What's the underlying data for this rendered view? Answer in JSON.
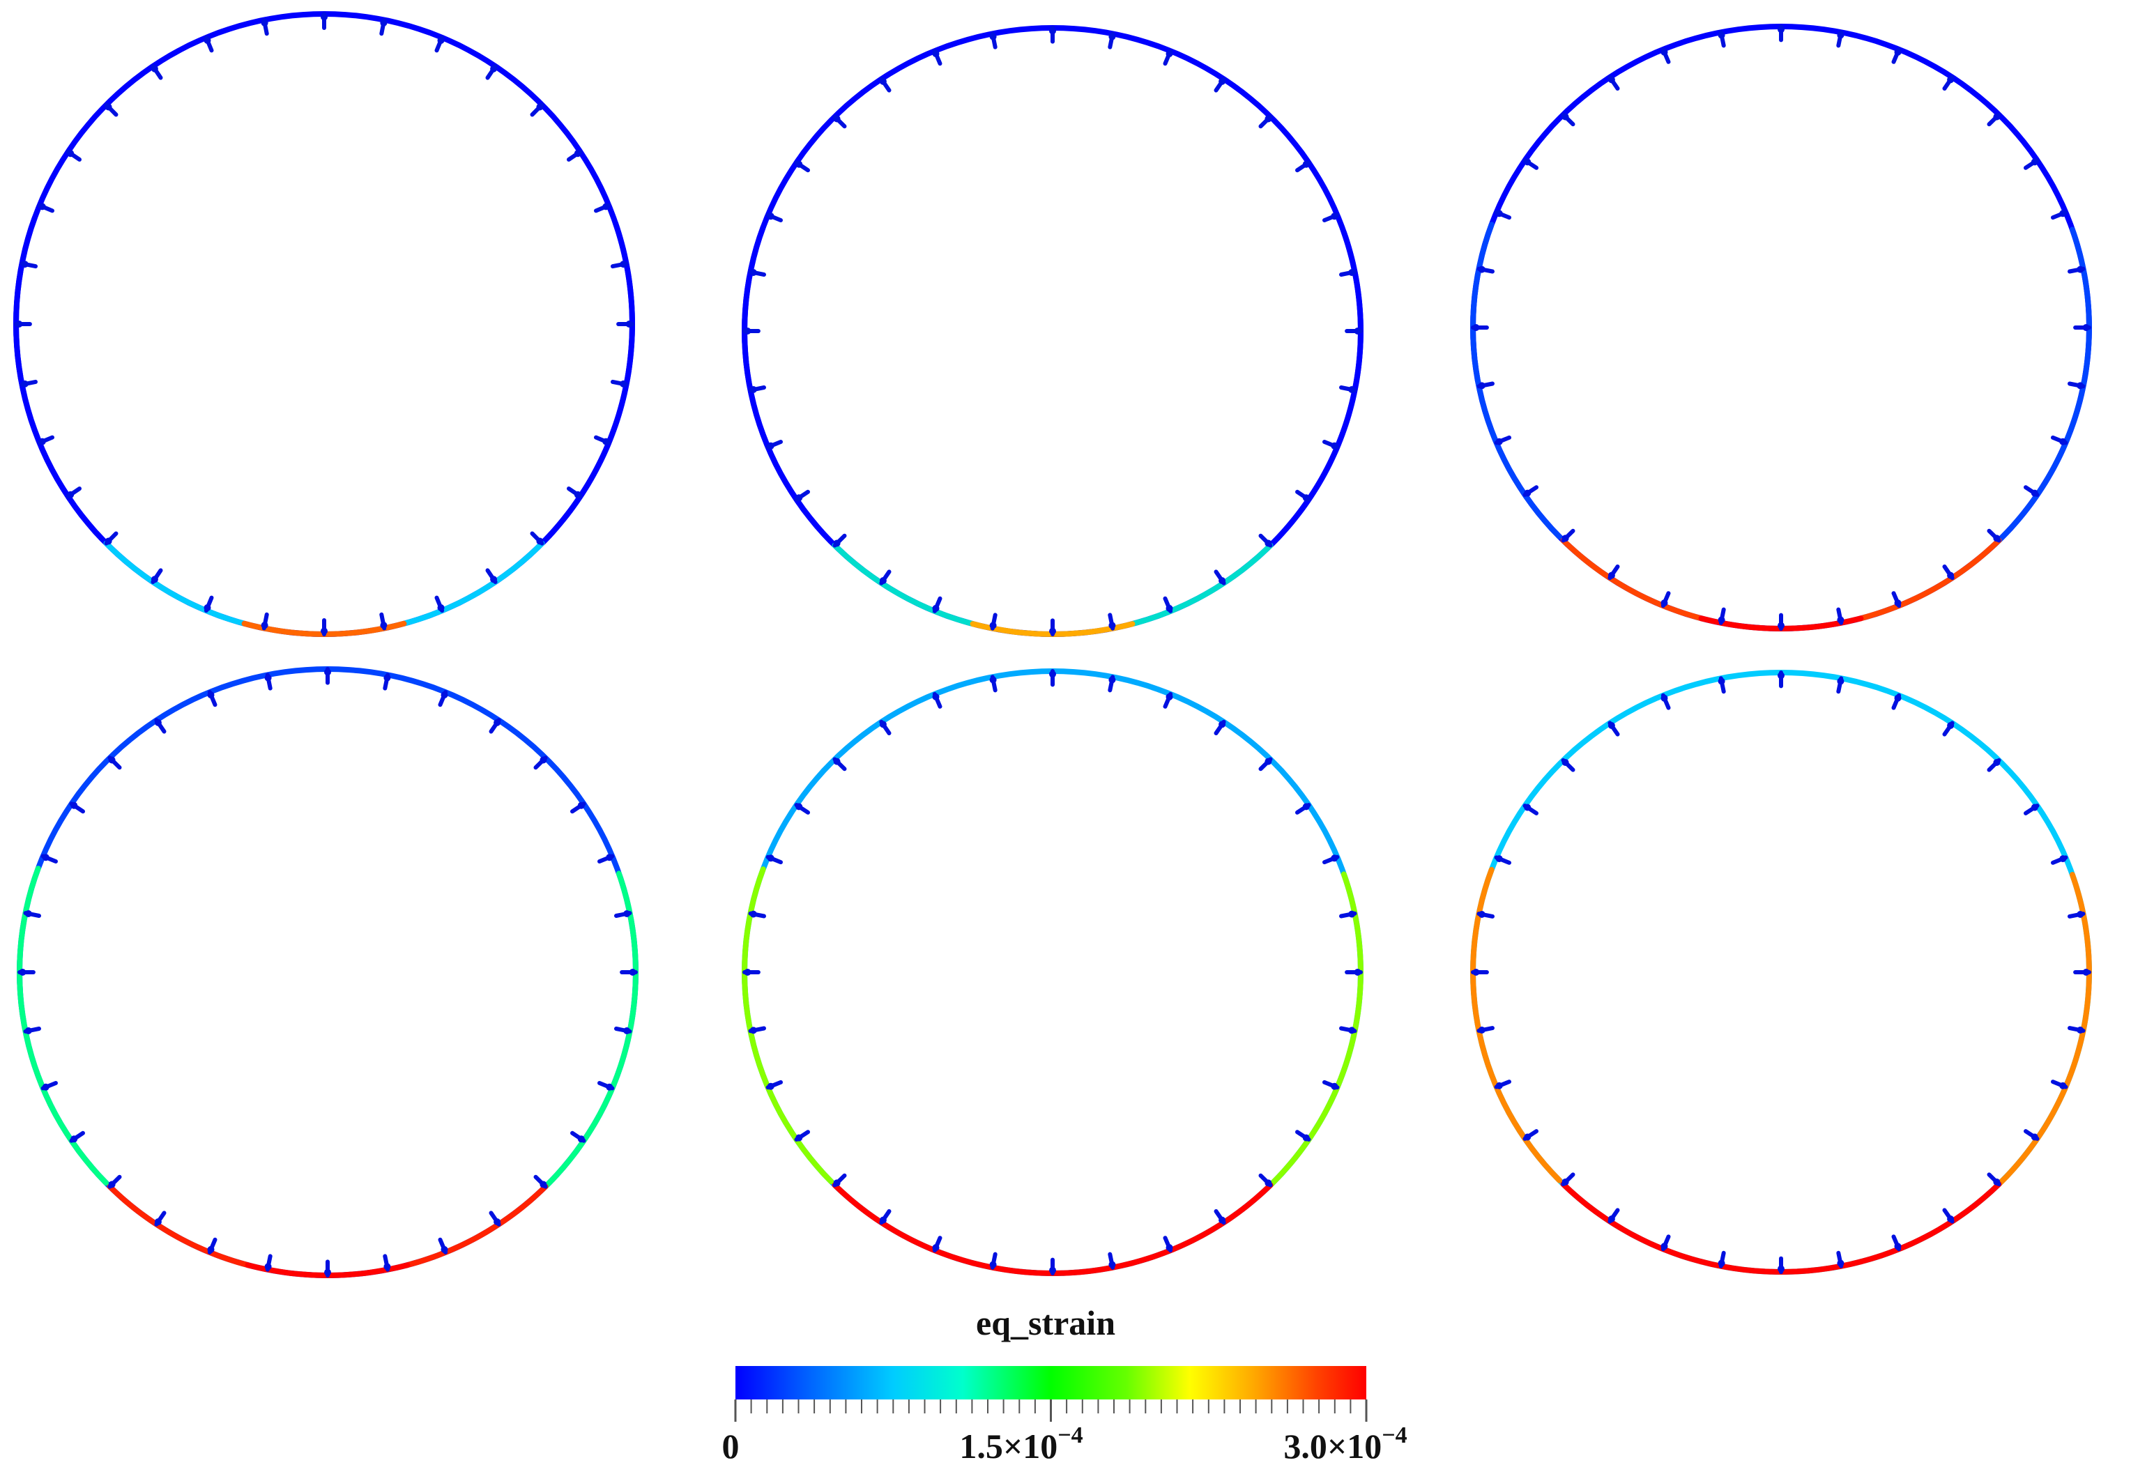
{
  "colorbar": {
    "title": "eq_strain",
    "tick_min": "0",
    "tick_mid": "1.5×10",
    "tick_mid_exp": "−4",
    "tick_max": "3.0×10",
    "tick_max_exp": "−4",
    "range": [
      0,
      0.0003
    ],
    "colormap": [
      "#0000ff",
      "#0066ff",
      "#00ccff",
      "#00ffcc",
      "#00ff00",
      "#66ff00",
      "#ffff00",
      "#ffaa00",
      "#ff4400",
      "#ff0000"
    ]
  },
  "panels": [
    {
      "id": "a",
      "peak_strain": "low",
      "hot_zone": "invert",
      "colors": {
        "crown": "#0000ff",
        "sides": "#0000ff",
        "lower_sides": "#00ccff",
        "invert": "#ff6600"
      }
    },
    {
      "id": "b",
      "peak_strain": "low-moderate",
      "hot_zone": "invert",
      "colors": {
        "crown": "#0000ff",
        "sides": "#0000ff",
        "lower_sides": "#00ddcc",
        "invert": "#ffaa00"
      }
    },
    {
      "id": "c",
      "peak_strain": "moderate",
      "hot_zone": "invert",
      "colors": {
        "crown": "#0000ff",
        "sides": "#0044ff",
        "lower_sides": "#ff4400",
        "invert": "#ff0000"
      }
    },
    {
      "id": "d",
      "peak_strain": "moderate-high",
      "hot_zone": "invert and lower shoulders",
      "colors": {
        "crown": "#0044ff",
        "sides": "#00ff88",
        "lower_sides": "#ff2200",
        "invert": "#ff0000"
      }
    },
    {
      "id": "e",
      "peak_strain": "high",
      "hot_zone": "invert and lower shoulders",
      "colors": {
        "crown": "#00aaff",
        "sides": "#88ff00",
        "lower_sides": "#ff0000",
        "invert": "#ff0000"
      }
    },
    {
      "id": "f",
      "peak_strain": "highest",
      "hot_zone": "invert, haunches and sidewalls",
      "colors": {
        "crown": "#00ccff",
        "sides": "#ff8800",
        "lower_sides": "#ff0000",
        "invert": "#ff0000"
      }
    }
  ]
}
